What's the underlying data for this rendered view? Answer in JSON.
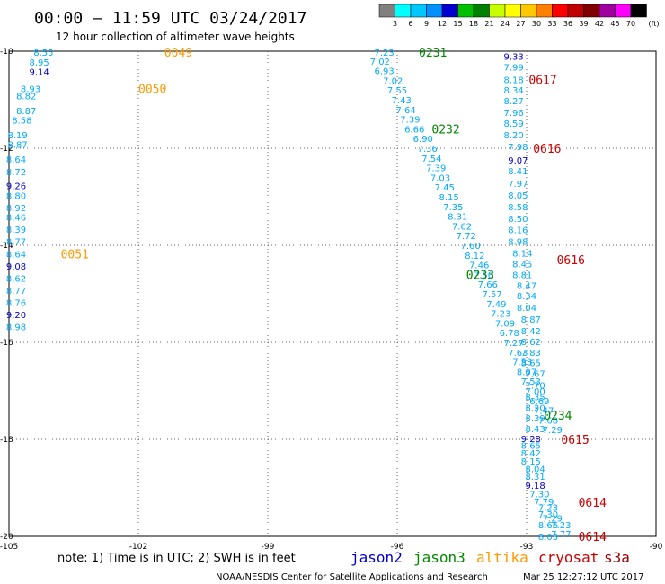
{
  "title": "00:00 – 11:59 UTC 03/24/2017",
  "subtitle": "12 hour collection of altimeter wave heights",
  "note": "note: 1) Time is in UTC; 2) SWH is in feet",
  "credit": "NOAA/NESDIS Center for Satellite Applications and Research",
  "timestamp": "Mar 25 12:27:12 UTC 2017",
  "colorbar": {
    "unit": "(ft)",
    "labels": [
      "3",
      "6",
      "9",
      "12",
      "15",
      "18",
      "21",
      "24",
      "27",
      "30",
      "33",
      "36",
      "39",
      "42",
      "45",
      "70"
    ],
    "colors": [
      "#808080",
      "#00ffff",
      "#00c8ff",
      "#0090ff",
      "#0000d0",
      "#00c000",
      "#008000",
      "#c8ff00",
      "#ffff00",
      "#ffc800",
      "#ff8000",
      "#ff0000",
      "#c00000",
      "#800000",
      "#a000a0",
      "#ff00ff",
      "#000000"
    ]
  },
  "legend": [
    {
      "name": "jason2",
      "color": "#0000cc"
    },
    {
      "name": "jason3",
      "color": "#008800"
    },
    {
      "name": "altika",
      "color": "#ff9900"
    },
    {
      "name": "cryosat",
      "color": "#cc0000"
    },
    {
      "name": "s3a",
      "color": "#a00000"
    }
  ],
  "chart_data": {
    "type": "scatter",
    "xlim": [
      -105,
      -90
    ],
    "ylim": [
      -20,
      -10
    ],
    "x_ticks": [
      "-105",
      "-102",
      "-99",
      "-96",
      "-93",
      "-90"
    ],
    "y_ticks": [
      "-10",
      "-12",
      "-14",
      "-16",
      "-18",
      "-20"
    ],
    "grid": true,
    "pass_labels": [
      {
        "text": "0049",
        "lon": -101.4,
        "lat": -10.02,
        "color": "#ff9900"
      },
      {
        "text": "0050",
        "lon": -102.0,
        "lat": -10.77,
        "color": "#ff9900"
      },
      {
        "text": "0051",
        "lon": -103.8,
        "lat": -14.18,
        "color": "#ff9900"
      },
      {
        "text": "0231",
        "lon": -95.5,
        "lat": -10.02,
        "color": "#008800"
      },
      {
        "text": "0232",
        "lon": -95.2,
        "lat": -11.6,
        "color": "#008800"
      },
      {
        "text": "0233",
        "lon": -94.4,
        "lat": -14.6,
        "color": "#008800"
      },
      {
        "text": "0234",
        "lon": -92.6,
        "lat": -17.5,
        "color": "#008800"
      },
      {
        "text": "0617",
        "lon": -92.95,
        "lat": -10.58,
        "color": "#cc0000"
      },
      {
        "text": "0616",
        "lon": -92.85,
        "lat": -12.0,
        "color": "#cc0000"
      },
      {
        "text": "0616",
        "lon": -92.3,
        "lat": -14.3,
        "color": "#cc0000"
      },
      {
        "text": "0615",
        "lon": -92.2,
        "lat": -18.0,
        "color": "#cc0000"
      },
      {
        "text": "0614",
        "lon": -91.8,
        "lat": -19.3,
        "color": "#cc0000"
      },
      {
        "text": "0614",
        "lon": -91.8,
        "lat": -20.0,
        "color": "#cc0000"
      }
    ],
    "tracks": [
      {
        "name": "altika-west",
        "points": [
          {
            "lon": -104.2,
            "lat": -10.02,
            "v": "8.55",
            "c": "#00aaff"
          },
          {
            "lon": -104.3,
            "lat": -10.22,
            "v": "8.95",
            "c": "#00aaff"
          },
          {
            "lon": -104.3,
            "lat": -10.42,
            "v": "9.14",
            "c": "#0000cc"
          },
          {
            "lon": -104.5,
            "lat": -10.77,
            "v": "8.93",
            "c": "#00aaff"
          },
          {
            "lon": -104.6,
            "lat": -10.92,
            "v": "8.82",
            "c": "#00aaff"
          },
          {
            "lon": -104.6,
            "lat": -11.22,
            "v": "8.87",
            "c": "#00aaff"
          },
          {
            "lon": -104.7,
            "lat": -11.42,
            "v": "8.58",
            "c": "#00aaff"
          },
          {
            "lon": -104.8,
            "lat": -11.72,
            "v": "8.19",
            "c": "#00aaff"
          },
          {
            "lon": -104.8,
            "lat": -11.92,
            "v": "8.87",
            "c": "#00aaff"
          },
          {
            "lon": -104.9,
            "lat": -12.22,
            "v": "8.64",
            "c": "#00aaff"
          },
          {
            "lon": -105.0,
            "lat": -12.48,
            "v": "8.72",
            "c": "#00aaff"
          },
          {
            "lon": -105.0,
            "lat": -12.77,
            "v": "9.26",
            "c": "#0000cc"
          },
          {
            "lon": -105.1,
            "lat": -12.97,
            "v": "8.80",
            "c": "#00aaff"
          },
          {
            "lon": -105.1,
            "lat": -13.22,
            "v": "8.92",
            "c": "#00aaff"
          },
          {
            "lon": -105.2,
            "lat": -13.42,
            "v": "8.46",
            "c": "#00aaff"
          },
          {
            "lon": -105.3,
            "lat": -13.67,
            "v": "8.39",
            "c": "#00aaff"
          },
          {
            "lon": -105.4,
            "lat": -13.92,
            "v": "8.77",
            "c": "#00aaff"
          },
          {
            "lon": -105.4,
            "lat": -14.18,
            "v": "8.64",
            "c": "#00aaff"
          },
          {
            "lon": -105.5,
            "lat": -14.43,
            "v": "9.08",
            "c": "#0000cc"
          },
          {
            "lon": -105.6,
            "lat": -14.68,
            "v": "8.62",
            "c": "#00aaff"
          },
          {
            "lon": -105.6,
            "lat": -14.93,
            "v": "8.77",
            "c": "#00aaff"
          },
          {
            "lon": -105.7,
            "lat": -15.18,
            "v": "8.76",
            "c": "#00aaff"
          },
          {
            "lon": -105.7,
            "lat": -15.43,
            "v": "9.20",
            "c": "#0000cc"
          },
          {
            "lon": -105.8,
            "lat": -15.68,
            "v": "8.98",
            "c": "#00aaff"
          }
        ]
      },
      {
        "name": "jason3-track",
        "points": [
          {
            "lon": -96.3,
            "lat": -10.02,
            "v": "7.23",
            "c": "#00aaff"
          },
          {
            "lon": -96.4,
            "lat": -10.2,
            "v": "7.02",
            "c": "#00aaff"
          },
          {
            "lon": -96.3,
            "lat": -10.4,
            "v": "6.93",
            "c": "#00aaff"
          },
          {
            "lon": -96.1,
            "lat": -10.6,
            "v": "7.02",
            "c": "#00aaff"
          },
          {
            "lon": -96.0,
            "lat": -10.8,
            "v": "7.55",
            "c": "#00aaff"
          },
          {
            "lon": -95.9,
            "lat": -11.0,
            "v": "7.43",
            "c": "#00aaff"
          },
          {
            "lon": -95.8,
            "lat": -11.2,
            "v": "7.64",
            "c": "#00aaff"
          },
          {
            "lon": -95.7,
            "lat": -11.4,
            "v": "7.39",
            "c": "#00aaff"
          },
          {
            "lon": -95.6,
            "lat": -11.6,
            "v": "6.66",
            "c": "#00aaff"
          },
          {
            "lon": -95.4,
            "lat": -11.8,
            "v": "6.90",
            "c": "#00aaff"
          },
          {
            "lon": -95.3,
            "lat": -12.0,
            "v": "7.36",
            "c": "#00aaff"
          },
          {
            "lon": -95.2,
            "lat": -12.2,
            "v": "7.54",
            "c": "#00aaff"
          },
          {
            "lon": -95.1,
            "lat": -12.4,
            "v": "7.39",
            "c": "#00aaff"
          },
          {
            "lon": -95.0,
            "lat": -12.6,
            "v": "7.03",
            "c": "#00aaff"
          },
          {
            "lon": -94.9,
            "lat": -12.8,
            "v": "7.45",
            "c": "#00aaff"
          },
          {
            "lon": -94.8,
            "lat": -13.0,
            "v": "8.15",
            "c": "#00aaff"
          },
          {
            "lon": -94.7,
            "lat": -13.2,
            "v": "7.35",
            "c": "#00aaff"
          },
          {
            "lon": -94.6,
            "lat": -13.4,
            "v": "8.31",
            "c": "#00aaff"
          },
          {
            "lon": -94.5,
            "lat": -13.6,
            "v": "7.62",
            "c": "#00aaff"
          },
          {
            "lon": -94.4,
            "lat": -13.8,
            "v": "7.72",
            "c": "#00aaff"
          },
          {
            "lon": -94.3,
            "lat": -14.0,
            "v": "7.60",
            "c": "#00aaff"
          },
          {
            "lon": -94.2,
            "lat": -14.2,
            "v": "8.12",
            "c": "#00aaff"
          },
          {
            "lon": -94.1,
            "lat": -14.4,
            "v": "7.46",
            "c": "#00aaff"
          },
          {
            "lon": -94.0,
            "lat": -14.6,
            "v": "7.50",
            "c": "#00aaff"
          },
          {
            "lon": -93.9,
            "lat": -14.8,
            "v": "7.66",
            "c": "#00aaff"
          },
          {
            "lon": -93.8,
            "lat": -15.0,
            "v": "7.57",
            "c": "#00aaff"
          },
          {
            "lon": -93.7,
            "lat": -15.2,
            "v": "7.49",
            "c": "#00aaff"
          },
          {
            "lon": -93.6,
            "lat": -15.4,
            "v": "7.23",
            "c": "#00aaff"
          },
          {
            "lon": -93.5,
            "lat": -15.6,
            "v": "7.09",
            "c": "#00aaff"
          },
          {
            "lon": -93.4,
            "lat": -15.8,
            "v": "6.78",
            "c": "#00aaff"
          },
          {
            "lon": -93.3,
            "lat": -16.0,
            "v": "7.27",
            "c": "#00aaff"
          },
          {
            "lon": -93.2,
            "lat": -16.2,
            "v": "7.63",
            "c": "#00aaff"
          },
          {
            "lon": -93.1,
            "lat": -16.4,
            "v": "7.53",
            "c": "#00aaff"
          },
          {
            "lon": -93.0,
            "lat": -16.6,
            "v": "8.07",
            "c": "#00aaff"
          },
          {
            "lon": -92.9,
            "lat": -16.8,
            "v": "7.53",
            "c": "#00aaff"
          },
          {
            "lon": -92.8,
            "lat": -17.0,
            "v": "7.00",
            "c": "#00aaff"
          },
          {
            "lon": -92.7,
            "lat": -17.2,
            "v": "6.69",
            "c": "#00aaff"
          },
          {
            "lon": -92.6,
            "lat": -17.4,
            "v": "7.47",
            "c": "#00aaff"
          },
          {
            "lon": -92.5,
            "lat": -17.6,
            "v": "7.68",
            "c": "#00aaff"
          },
          {
            "lon": -92.4,
            "lat": -17.8,
            "v": "7.29",
            "c": "#00aaff"
          }
        ]
      },
      {
        "name": "cryosat-track",
        "points": [
          {
            "lon": -93.3,
            "lat": -10.1,
            "v": "9.33",
            "c": "#0000cc"
          },
          {
            "lon": -93.3,
            "lat": -10.32,
            "v": "7.99",
            "c": "#00aaff"
          },
          {
            "lon": -93.3,
            "lat": -10.58,
            "v": "8.18",
            "c": "#00aaff"
          },
          {
            "lon": -93.3,
            "lat": -10.8,
            "v": "8.34",
            "c": "#00aaff"
          },
          {
            "lon": -93.3,
            "lat": -11.02,
            "v": "8.27",
            "c": "#00aaff"
          },
          {
            "lon": -93.3,
            "lat": -11.26,
            "v": "7.96",
            "c": "#00aaff"
          },
          {
            "lon": -93.3,
            "lat": -11.48,
            "v": "8.59",
            "c": "#00aaff"
          },
          {
            "lon": -93.3,
            "lat": -11.72,
            "v": "8.20",
            "c": "#00aaff"
          },
          {
            "lon": -93.2,
            "lat": -11.96,
            "v": "7.98",
            "c": "#00aaff"
          },
          {
            "lon": -93.2,
            "lat": -12.24,
            "v": "9.07",
            "c": "#0000cc"
          },
          {
            "lon": -93.2,
            "lat": -12.46,
            "v": "8.41",
            "c": "#00aaff"
          },
          {
            "lon": -93.2,
            "lat": -12.72,
            "v": "7.97",
            "c": "#00aaff"
          },
          {
            "lon": -93.2,
            "lat": -12.96,
            "v": "8.05",
            "c": "#00aaff"
          },
          {
            "lon": -93.2,
            "lat": -13.2,
            "v": "8.58",
            "c": "#00aaff"
          },
          {
            "lon": -93.2,
            "lat": -13.44,
            "v": "8.50",
            "c": "#00aaff"
          },
          {
            "lon": -93.2,
            "lat": -13.68,
            "v": "8.16",
            "c": "#00aaff"
          },
          {
            "lon": -93.2,
            "lat": -13.92,
            "v": "8.98",
            "c": "#00aaff"
          },
          {
            "lon": -93.1,
            "lat": -14.16,
            "v": "8.14",
            "c": "#00aaff"
          },
          {
            "lon": -93.1,
            "lat": -14.38,
            "v": "8.45",
            "c": "#00aaff"
          },
          {
            "lon": -93.1,
            "lat": -14.6,
            "v": "8.81",
            "c": "#00aaff"
          },
          {
            "lon": -93.0,
            "lat": -14.82,
            "v": "8.47",
            "c": "#00aaff"
          },
          {
            "lon": -93.0,
            "lat": -15.04,
            "v": "8.34",
            "c": "#00aaff"
          },
          {
            "lon": -93.0,
            "lat": -15.28,
            "v": "8.04",
            "c": "#00aaff"
          },
          {
            "lon": -92.9,
            "lat": -15.52,
            "v": "8.87",
            "c": "#00aaff"
          },
          {
            "lon": -92.9,
            "lat": -15.76,
            "v": "8.42",
            "c": "#00aaff"
          },
          {
            "lon": -92.9,
            "lat": -15.98,
            "v": "8.62",
            "c": "#00aaff"
          },
          {
            "lon": -92.9,
            "lat": -16.2,
            "v": "7.83",
            "c": "#00aaff"
          },
          {
            "lon": -92.9,
            "lat": -16.42,
            "v": "8.65",
            "c": "#00aaff"
          },
          {
            "lon": -92.8,
            "lat": -16.64,
            "v": "7.67",
            "c": "#00aaff"
          },
          {
            "lon": -92.8,
            "lat": -16.88,
            "v": "7.70",
            "c": "#00aaff"
          },
          {
            "lon": -92.8,
            "lat": -17.12,
            "v": "8.35",
            "c": "#00aaff"
          },
          {
            "lon": -92.8,
            "lat": -17.34,
            "v": "8.20",
            "c": "#00aaff"
          },
          {
            "lon": -92.8,
            "lat": -17.56,
            "v": "8.39",
            "c": "#00aaff"
          },
          {
            "lon": -92.8,
            "lat": -17.78,
            "v": "8.43",
            "c": "#00aaff"
          },
          {
            "lon": -92.9,
            "lat": -17.98,
            "v": "9.28",
            "c": "#0000cc"
          },
          {
            "lon": -92.9,
            "lat": -18.12,
            "v": "8.65",
            "c": "#00aaff"
          },
          {
            "lon": -92.9,
            "lat": -18.28,
            "v": "8.42",
            "c": "#00aaff"
          },
          {
            "lon": -92.9,
            "lat": -18.44,
            "v": "8.15",
            "c": "#00aaff"
          },
          {
            "lon": -92.8,
            "lat": -18.6,
            "v": "8.04",
            "c": "#00aaff"
          },
          {
            "lon": -92.8,
            "lat": -18.76,
            "v": "8.31",
            "c": "#00aaff"
          },
          {
            "lon": -92.8,
            "lat": -18.94,
            "v": "9.18",
            "c": "#0000cc"
          },
          {
            "lon": -92.7,
            "lat": -19.12,
            "v": "7.30",
            "c": "#00aaff"
          },
          {
            "lon": -92.6,
            "lat": -19.28,
            "v": "7.79",
            "c": "#00aaff"
          },
          {
            "lon": -92.5,
            "lat": -19.4,
            "v": "7.23",
            "c": "#00aaff"
          },
          {
            "lon": -92.5,
            "lat": -19.54,
            "v": "7.30",
            "c": "#00aaff"
          },
          {
            "lon": -92.4,
            "lat": -19.62,
            "v": "7.29",
            "c": "#00aaff"
          },
          {
            "lon": -92.5,
            "lat": -19.76,
            "v": "8.66",
            "c": "#00aaff"
          },
          {
            "lon": -92.2,
            "lat": -19.76,
            "v": "7.23",
            "c": "#00aaff"
          },
          {
            "lon": -92.5,
            "lat": -20.0,
            "v": "8.03",
            "c": "#00aaff"
          },
          {
            "lon": -92.2,
            "lat": -19.94,
            "v": "7.77",
            "c": "#00aaff"
          }
        ]
      }
    ]
  }
}
